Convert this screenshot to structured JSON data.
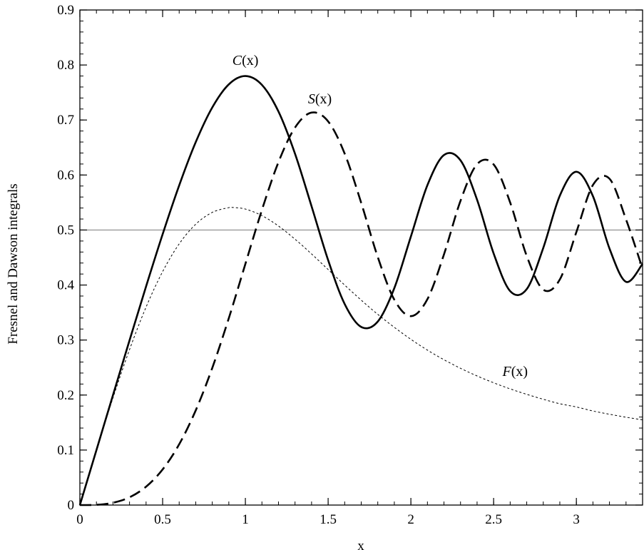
{
  "chart_data": {
    "type": "line",
    "xlabel": "x",
    "ylabel": "Fresnel and Dawson integrals",
    "xlim": [
      0,
      3.4
    ],
    "ylim": [
      0,
      0.9
    ],
    "x_ticks": [
      "0",
      "0.5",
      "1",
      "1.5",
      "2",
      "2.5",
      "3"
    ],
    "y_ticks": [
      "0",
      "0.1",
      "0.2",
      "0.3",
      "0.4",
      "0.5",
      "0.6",
      "0.7",
      "0.8",
      "0.9"
    ],
    "reference_line": {
      "y": 0.5
    },
    "series": [
      {
        "name": "C(x)",
        "label_func": "C",
        "label_arg": "(x)",
        "label_pos": [
          1.0,
          0.8
        ],
        "style": "solid",
        "x": [
          0,
          0.1,
          0.2,
          0.3,
          0.4,
          0.5,
          0.6,
          0.7,
          0.8,
          0.9,
          1.0,
          1.1,
          1.2,
          1.3,
          1.4,
          1.5,
          1.6,
          1.7,
          1.8,
          1.9,
          2.0,
          2.1,
          2.2,
          2.3,
          2.4,
          2.5,
          2.6,
          2.7,
          2.8,
          2.9,
          3.0,
          3.1,
          3.2,
          3.3,
          3.4
        ],
        "y": [
          0,
          0.0999,
          0.1999,
          0.2994,
          0.3975,
          0.4923,
          0.5811,
          0.6597,
          0.7228,
          0.7648,
          0.7799,
          0.7638,
          0.7154,
          0.6386,
          0.5431,
          0.4453,
          0.3655,
          0.3238,
          0.3336,
          0.3944,
          0.4882,
          0.5816,
          0.6363,
          0.6266,
          0.555,
          0.4574,
          0.3889,
          0.3925,
          0.4675,
          0.5624,
          0.6058,
          0.5616,
          0.4664,
          0.4058,
          0.4385
        ]
      },
      {
        "name": "S(x)",
        "label_func": "S",
        "label_arg": "(x)",
        "label_pos": [
          1.45,
          0.73
        ],
        "style": "dashed",
        "x": [
          0,
          0.1,
          0.2,
          0.3,
          0.4,
          0.5,
          0.6,
          0.7,
          0.8,
          0.9,
          1.0,
          1.1,
          1.2,
          1.3,
          1.4,
          1.5,
          1.6,
          1.7,
          1.8,
          1.9,
          2.0,
          2.1,
          2.2,
          2.3,
          2.4,
          2.5,
          2.6,
          2.7,
          2.8,
          2.9,
          3.0,
          3.1,
          3.2,
          3.3,
          3.4
        ],
        "y": [
          0,
          0.0005,
          0.0042,
          0.0141,
          0.0334,
          0.0647,
          0.1105,
          0.1721,
          0.2493,
          0.3398,
          0.4383,
          0.5365,
          0.6234,
          0.6863,
          0.7135,
          0.6975,
          0.6389,
          0.5492,
          0.4509,
          0.3733,
          0.3434,
          0.3743,
          0.4557,
          0.5532,
          0.6197,
          0.6192,
          0.55,
          0.4529,
          0.3915,
          0.4101,
          0.4963,
          0.5818,
          0.5933,
          0.5193,
          0.4296
        ]
      },
      {
        "name": "F(x)",
        "label_func": "F",
        "label_arg": "(x)",
        "label_pos": [
          2.63,
          0.235
        ],
        "style": "dotted",
        "x": [
          0,
          0.1,
          0.2,
          0.3,
          0.4,
          0.5,
          0.6,
          0.7,
          0.8,
          0.9,
          0.924,
          1.0,
          1.1,
          1.2,
          1.3,
          1.4,
          1.5,
          1.6,
          1.7,
          1.8,
          1.9,
          2.0,
          2.1,
          2.2,
          2.3,
          2.4,
          2.5,
          2.6,
          2.7,
          2.8,
          2.9,
          3.0,
          3.1,
          3.2,
          3.3,
          3.4
        ],
        "y": [
          0,
          0.0993,
          0.1948,
          0.2826,
          0.3599,
          0.4244,
          0.4748,
          0.5105,
          0.5321,
          0.5407,
          0.541,
          0.5381,
          0.5262,
          0.5073,
          0.4833,
          0.4565,
          0.4282,
          0.3999,
          0.3725,
          0.3467,
          0.3231,
          0.3013,
          0.2817,
          0.2642,
          0.2486,
          0.2347,
          0.2223,
          0.2112,
          0.2013,
          0.1923,
          0.1842,
          0.1783,
          0.171,
          0.1651,
          0.1597,
          0.1549
        ]
      }
    ]
  }
}
